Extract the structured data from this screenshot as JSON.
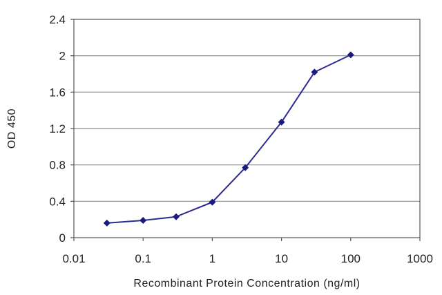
{
  "chart_data": {
    "type": "line",
    "xlabel": "Recombinant Protein Concentration (ng/ml)",
    "ylabel": "OD 450",
    "x_scale": "log",
    "xlim": [
      0.01,
      1000
    ],
    "ylim": [
      0,
      2.4
    ],
    "x_ticks": [
      0.01,
      0.1,
      1,
      10,
      100,
      1000
    ],
    "x_tick_labels": [
      "0.01",
      "0.1",
      "1",
      "10",
      "100",
      "1000"
    ],
    "y_ticks": [
      0,
      0.4,
      0.8,
      1.2,
      1.6,
      2,
      2.4
    ],
    "y_tick_labels": [
      "0",
      "0.4",
      "0.8",
      "1.2",
      "1.6",
      "2",
      "2.4"
    ],
    "grid": "horizontal",
    "colors": {
      "series": "#2b2b8f",
      "marker": "#1a1a80",
      "grid": "#8a8a8a",
      "frame": "#555555"
    },
    "series": [
      {
        "x": [
          0.03,
          0.1,
          0.3,
          1,
          3,
          10,
          30,
          100
        ],
        "values": [
          0.16,
          0.19,
          0.23,
          0.39,
          0.77,
          1.27,
          1.82,
          2.01
        ]
      }
    ]
  }
}
